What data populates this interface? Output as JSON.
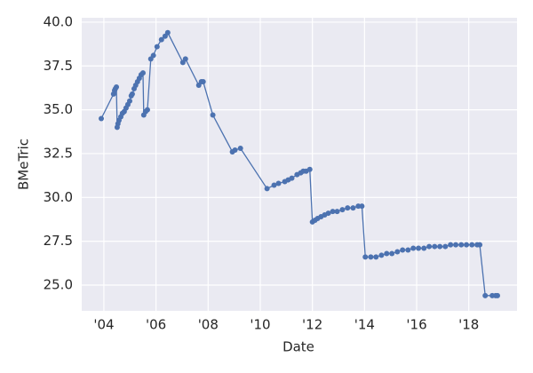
{
  "chart_data": {
    "type": "line",
    "x_label": "Date",
    "y_label": "BMeTric",
    "series": [
      {
        "color": "#4c72b0",
        "x": [
          2003.9,
          2004.37,
          2004.41,
          2004.44,
          2004.48,
          2004.51,
          2004.54,
          2004.58,
          2004.65,
          2004.71,
          2004.78,
          2004.85,
          2004.92,
          2004.99,
          2005.05,
          2005.09,
          2005.16,
          2005.22,
          2005.29,
          2005.36,
          2005.43,
          2005.5,
          2005.53,
          2005.6,
          2005.67,
          2005.8,
          2005.9,
          2006.04,
          2006.21,
          2006.35,
          2006.45,
          2007.03,
          2007.13,
          2007.64,
          2007.74,
          2007.81,
          2008.18,
          2008.93,
          2009.03,
          2009.24,
          2010.26,
          2010.53,
          2010.7,
          2010.94,
          2011.07,
          2011.21,
          2011.41,
          2011.55,
          2011.65,
          2011.76,
          2011.9,
          2012.0,
          2012.1,
          2012.2,
          2012.33,
          2012.47,
          2012.61,
          2012.78,
          2012.95,
          2013.15,
          2013.35,
          2013.56,
          2013.76,
          2013.9,
          2014.03,
          2014.24,
          2014.44,
          2014.65,
          2014.85,
          2015.05,
          2015.26,
          2015.46,
          2015.67,
          2015.87,
          2016.07,
          2016.28,
          2016.48,
          2016.69,
          2016.89,
          2017.1,
          2017.3,
          2017.5,
          2017.71,
          2017.91,
          2018.12,
          2018.32,
          2018.42,
          2018.63,
          2018.9,
          2019.03,
          2019.1
        ],
        "values": [
          34.5,
          35.9,
          36.1,
          36.2,
          36.3,
          34.0,
          34.2,
          34.4,
          34.6,
          34.8,
          34.9,
          35.1,
          35.3,
          35.5,
          35.8,
          35.9,
          36.2,
          36.4,
          36.6,
          36.8,
          37.0,
          37.1,
          34.7,
          34.9,
          35.0,
          37.9,
          38.1,
          38.6,
          39.0,
          39.2,
          39.4,
          37.7,
          37.9,
          36.4,
          36.6,
          36.6,
          34.7,
          32.6,
          32.7,
          32.8,
          30.5,
          30.7,
          30.8,
          30.9,
          31.0,
          31.1,
          31.3,
          31.4,
          31.5,
          31.5,
          31.6,
          28.6,
          28.7,
          28.8,
          28.9,
          29.0,
          29.1,
          29.2,
          29.2,
          29.3,
          29.4,
          29.4,
          29.5,
          29.5,
          26.6,
          26.6,
          26.6,
          26.7,
          26.8,
          26.8,
          26.9,
          27.0,
          27.0,
          27.1,
          27.1,
          27.1,
          27.2,
          27.2,
          27.2,
          27.2,
          27.3,
          27.3,
          27.3,
          27.3,
          27.3,
          27.3,
          27.3,
          24.4,
          24.4,
          24.4,
          24.4
        ]
      }
    ],
    "xlim": [
      2003.15,
      2019.85
    ],
    "xticks": [
      {
        "value": 2004,
        "label": "'04"
      },
      {
        "value": 2006,
        "label": "'06"
      },
      {
        "value": 2008,
        "label": "'08"
      },
      {
        "value": 2010,
        "label": "'10"
      },
      {
        "value": 2012,
        "label": "'12"
      },
      {
        "value": 2014,
        "label": "'14"
      },
      {
        "value": 2016,
        "label": "'16"
      },
      {
        "value": 2018,
        "label": "'18"
      }
    ],
    "ylim": [
      23.53,
      40.25
    ],
    "yticks": [
      {
        "value": 25,
        "label": "25.0"
      },
      {
        "value": 27.5,
        "label": "27.5"
      },
      {
        "value": 30,
        "label": "30.0"
      },
      {
        "value": 32.5,
        "label": "32.5"
      },
      {
        "value": 35,
        "label": "35.0"
      },
      {
        "value": 37.5,
        "label": "37.5"
      },
      {
        "value": 40,
        "label": "40.0"
      }
    ],
    "grid": true,
    "background": "#eaeaf2"
  }
}
